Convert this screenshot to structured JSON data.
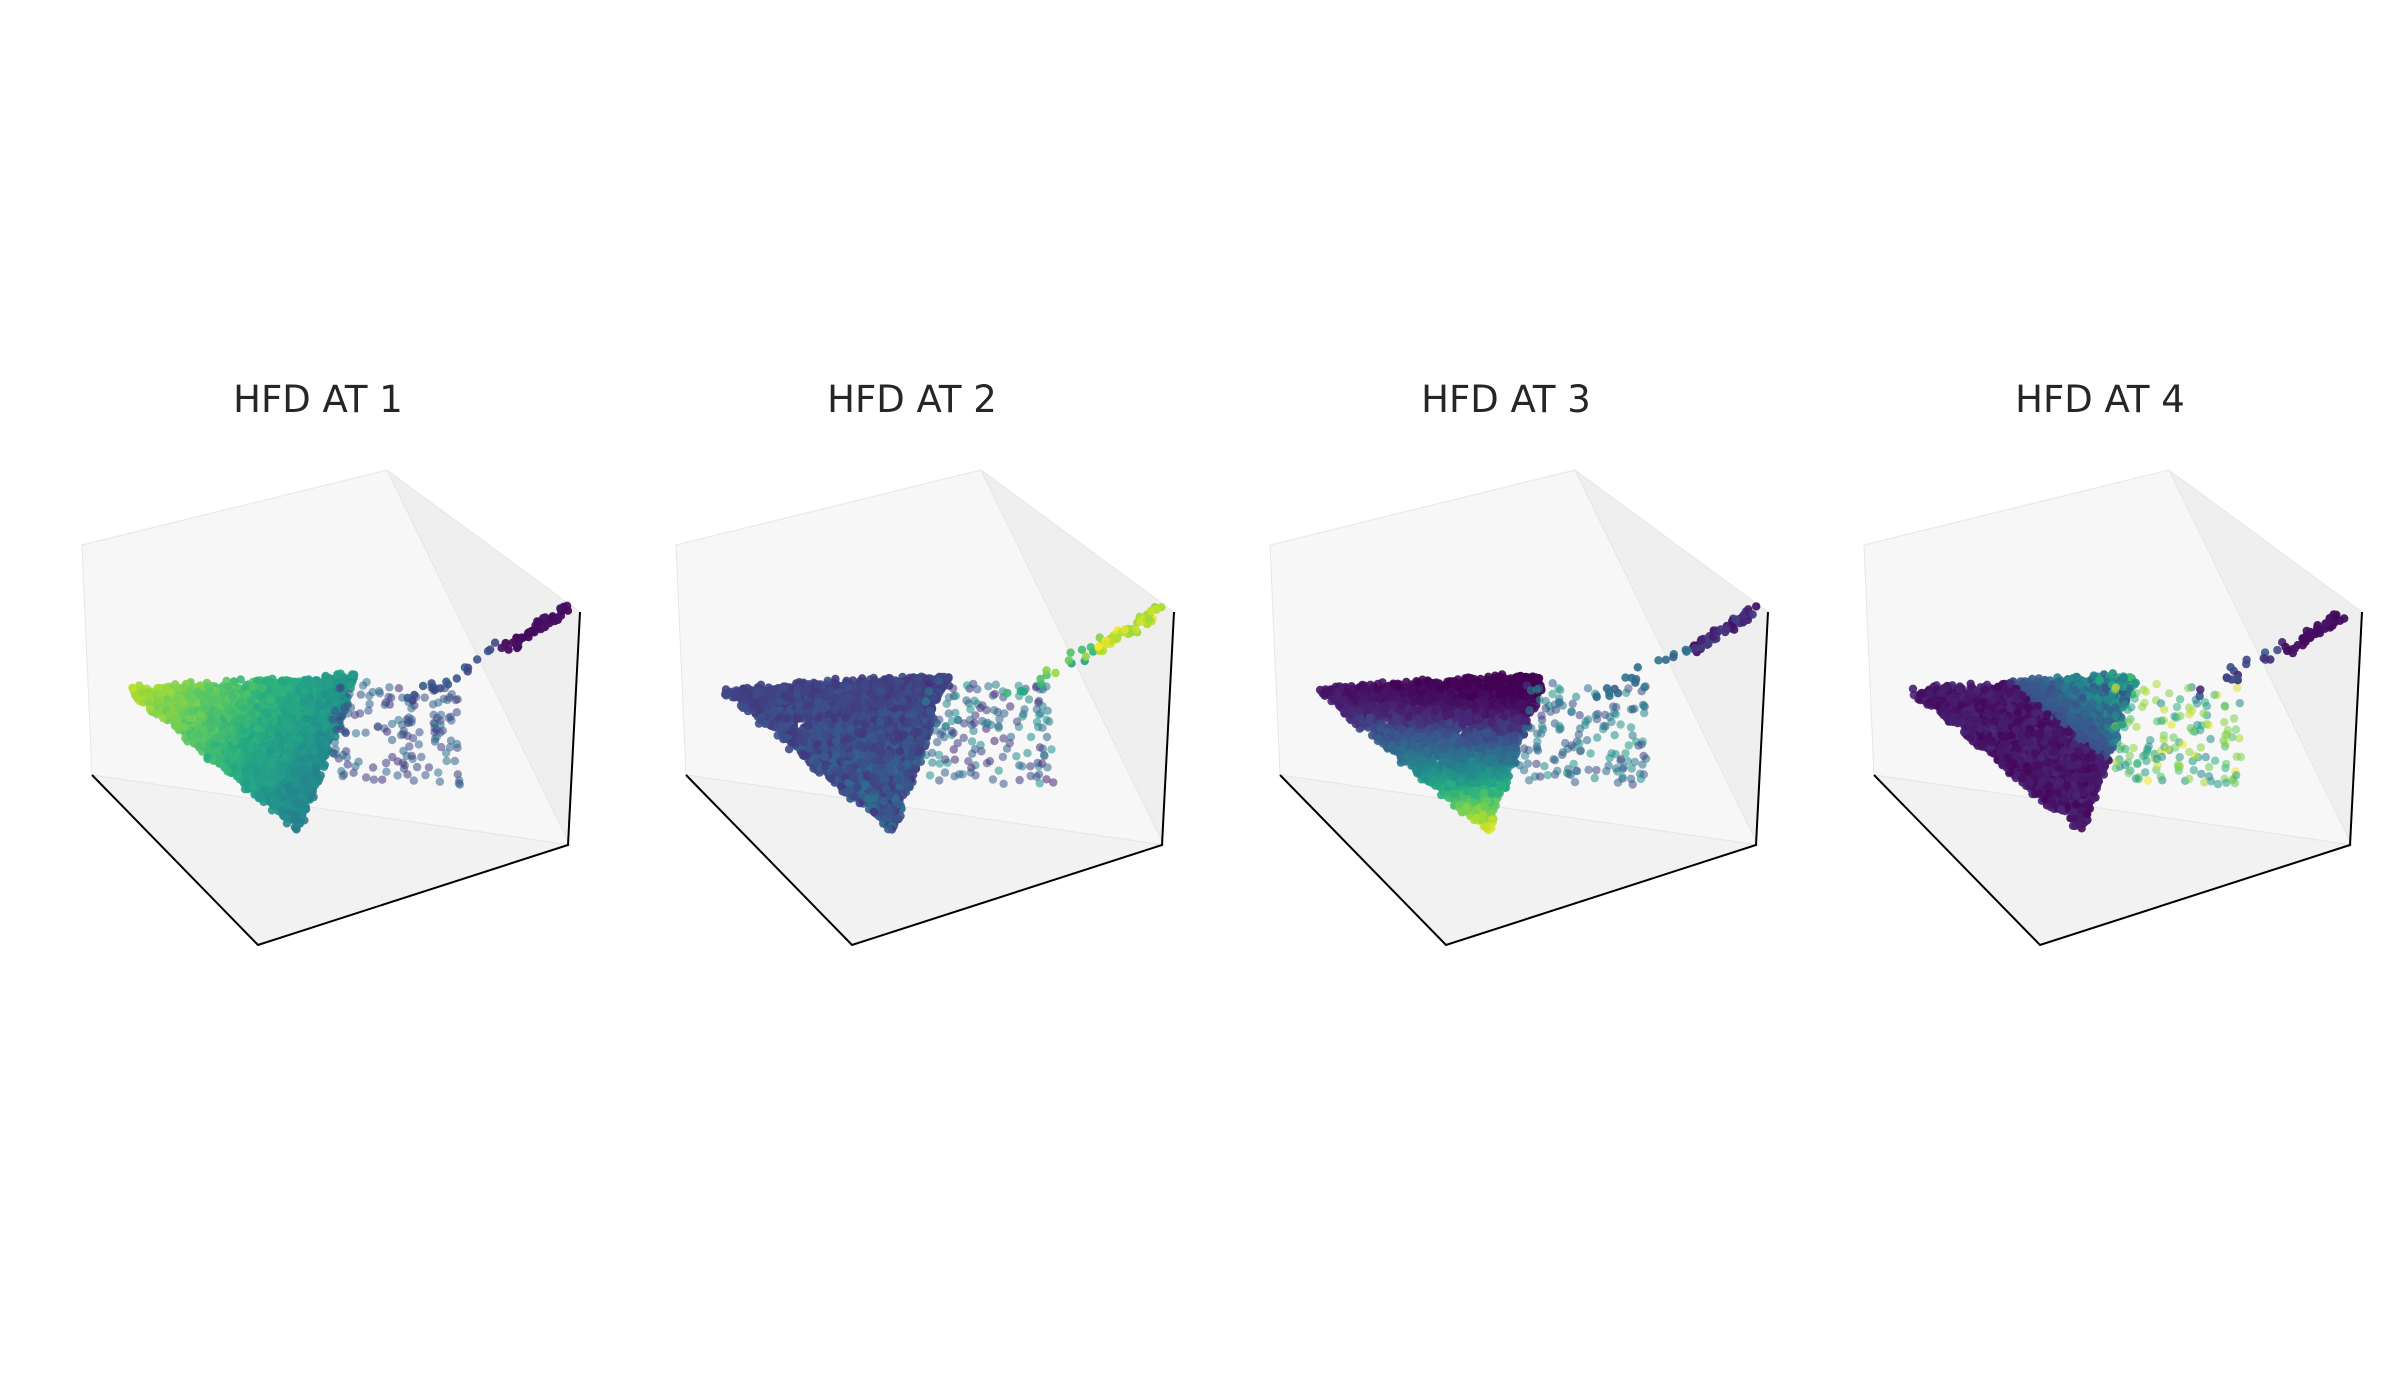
{
  "figure": {
    "panels": [
      {
        "title": "HFD AT 1",
        "color_pattern": "far-bright"
      },
      {
        "title": "HFD AT 2",
        "color_pattern": "branch-bright"
      },
      {
        "title": "HFD AT 3",
        "color_pattern": "tip-bright"
      },
      {
        "title": "HFD AT 4",
        "color_pattern": "mid-bright"
      }
    ]
  },
  "chart_data": [
    {
      "type": "scatter",
      "projection": "3d",
      "title": "HFD AT 1",
      "colormap": "viridis",
      "color_pattern": "far-bright",
      "axes_ticks": "off",
      "grid": "off"
    },
    {
      "type": "scatter",
      "projection": "3d",
      "title": "HFD AT 2",
      "colormap": "viridis",
      "color_pattern": "branch-bright",
      "axes_ticks": "off",
      "grid": "off"
    },
    {
      "type": "scatter",
      "projection": "3d",
      "title": "HFD AT 3",
      "colormap": "viridis",
      "color_pattern": "tip-bright",
      "axes_ticks": "off",
      "grid": "off"
    },
    {
      "type": "scatter",
      "projection": "3d",
      "title": "HFD AT 4",
      "colormap": "viridis",
      "color_pattern": "mid-bright",
      "axes_ticks": "off",
      "grid": "off"
    }
  ],
  "colors": {
    "pane_left": "#f7f7f7",
    "pane_right": "#efefef",
    "pane_floor": "#f2f2f2",
    "pane_edge": "#e6e6e6",
    "axis_line": "#000000",
    "title_text": "#262626"
  }
}
